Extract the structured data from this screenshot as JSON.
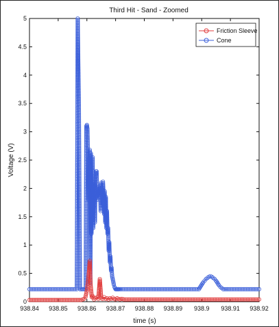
{
  "chart_data": {
    "type": "line",
    "title": "Third Hit - Sand - Zoomed",
    "xlabel": "time (s)",
    "ylabel": "Voltage (V)",
    "xlim": [
      938.84,
      938.92
    ],
    "ylim": [
      0,
      5
    ],
    "xticks": [
      "938.84",
      "938.85",
      "938.86",
      "938.87",
      "938.88",
      "938.89",
      "938.9",
      "938.91",
      "938.92"
    ],
    "yticks": [
      "0",
      "0.5",
      "1",
      "1.5",
      "2",
      "2.5",
      "3",
      "3.5",
      "4",
      "4.5",
      "5"
    ],
    "grid": false,
    "legend_position": "top-right",
    "series": [
      {
        "name": "Friction Sleeve",
        "color": "#e03c3c",
        "marker": "circle",
        "x": [
          938.84,
          938.858,
          938.859,
          938.8595,
          938.86,
          938.8605,
          938.861,
          938.8613,
          938.8617,
          938.862,
          938.8625,
          938.863,
          938.8635,
          938.864,
          938.8645,
          938.865,
          938.8655,
          938.866,
          938.8665,
          938.867,
          938.8675,
          938.868,
          938.8685,
          938.869,
          938.8695,
          938.87,
          938.8705,
          938.871,
          938.8715,
          938.872,
          938.873,
          938.92
        ],
        "y": [
          0.03,
          0.03,
          0.05,
          0.08,
          0.2,
          0.4,
          0.72,
          0.3,
          0.08,
          0.1,
          0.04,
          0.06,
          0.08,
          0.05,
          0.4,
          0.06,
          0.05,
          0.08,
          0.05,
          0.06,
          0.04,
          0.06,
          0.05,
          0.07,
          0.05,
          0.04,
          0.06,
          0.05,
          0.04,
          0.05,
          0.04,
          0.04
        ]
      },
      {
        "name": "Cone",
        "color": "#3b5fd9",
        "marker": "circle",
        "x": [
          938.84,
          938.8565,
          938.8568,
          938.8572,
          938.8576,
          938.858,
          938.8584,
          938.8588,
          938.8592,
          938.8596,
          938.8598,
          938.86,
          938.8602,
          938.8604,
          938.8606,
          938.8608,
          938.861,
          938.8612,
          938.8614,
          938.8616,
          938.8618,
          938.862,
          938.8622,
          938.8624,
          938.8626,
          938.8628,
          938.863,
          938.8632,
          938.8634,
          938.8636,
          938.8638,
          938.864,
          938.8642,
          938.8644,
          938.8646,
          938.8648,
          938.865,
          938.8652,
          938.8654,
          938.8656,
          938.8658,
          938.866,
          938.8662,
          938.8664,
          938.8666,
          938.8668,
          938.867,
          938.8672,
          938.8674,
          938.8676,
          938.8678,
          938.868,
          938.8682,
          938.8684,
          938.8686,
          938.8688,
          938.869,
          938.8692,
          938.8694,
          938.8696,
          938.8698,
          938.87,
          938.8702,
          938.8704,
          938.8706,
          938.8708,
          938.871,
          938.8712,
          938.8716,
          938.872,
          938.89,
          938.899,
          938.8995,
          938.9,
          938.9005,
          938.901,
          938.9015,
          938.902,
          938.9025,
          938.903,
          938.9035,
          938.904,
          938.9045,
          938.905,
          938.9055,
          938.906,
          938.9065,
          938.907,
          938.9075,
          938.908,
          938.909,
          938.92
        ],
        "y": [
          0.22,
          0.22,
          5.0,
          3.52,
          0.22,
          0.22,
          0.22,
          0.22,
          0.22,
          0.22,
          3.1,
          3.12,
          3.05,
          2.5,
          1.8,
          2.55,
          2.68,
          0.3,
          2.62,
          1.2,
          1.7,
          2.55,
          1.3,
          2.1,
          2.05,
          1.4,
          2.2,
          2.3,
          2.3,
          1.8,
          1.9,
          1.95,
          2.02,
          1.85,
          2.05,
          1.6,
          2.1,
          2.0,
          1.7,
          2.12,
          1.9,
          1.55,
          1.95,
          1.4,
          1.85,
          1.3,
          1.6,
          1.2,
          1.3,
          0.9,
          1.05,
          0.7,
          0.8,
          0.55,
          0.6,
          0.45,
          0.4,
          0.35,
          0.3,
          0.26,
          0.24,
          0.22,
          0.22,
          0.22,
          0.22,
          0.22,
          0.22,
          0.22,
          0.22,
          0.22,
          0.22,
          0.22,
          0.26,
          0.3,
          0.34,
          0.37,
          0.4,
          0.42,
          0.44,
          0.45,
          0.44,
          0.42,
          0.4,
          0.37,
          0.33,
          0.29,
          0.26,
          0.24,
          0.22,
          0.22,
          0.22,
          0.22
        ]
      }
    ]
  }
}
